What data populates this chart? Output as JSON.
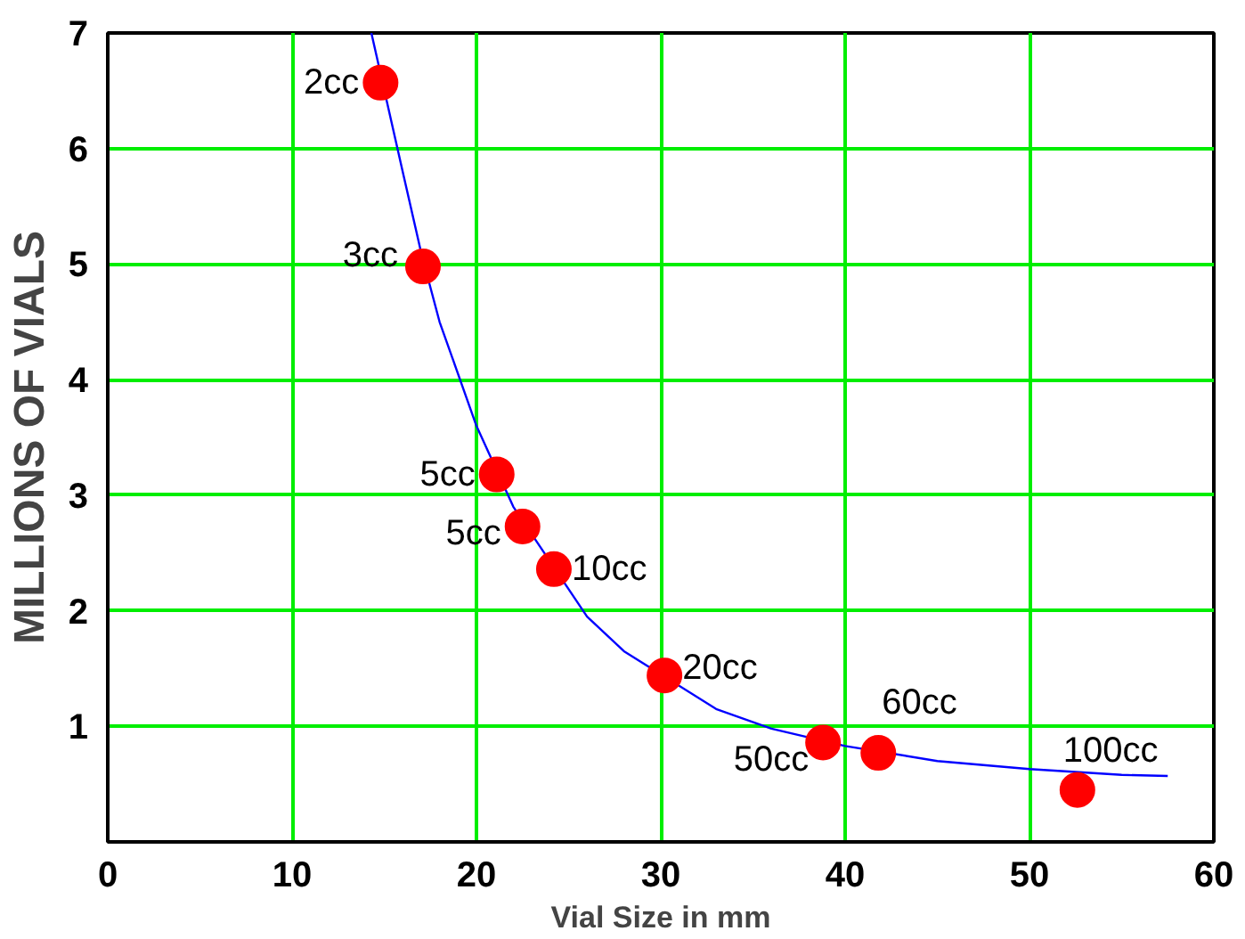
{
  "chart_data": {
    "type": "scatter",
    "xlabel": "Vial Size in mm",
    "ylabel": "MILLIONS OF VIALS",
    "x": [
      14.8,
      17.1,
      21.1,
      22.5,
      24.2,
      30.2,
      38.8,
      41.8,
      52.6
    ],
    "series": [
      {
        "color": "#ff0000",
        "values": [
          6.57,
          4.98,
          3.18,
          2.73,
          2.36,
          1.44,
          0.86,
          0.77,
          0.45
        ]
      },
      {
        "type": "line",
        "marker": "none",
        "color": "#0000ff",
        "x": [
          14.3,
          16,
          17,
          18,
          20,
          22,
          26,
          28,
          33,
          36,
          40,
          45,
          50,
          55,
          57.5
        ],
        "values": [
          7,
          5.8,
          5.1,
          4.5,
          3.6,
          2.9,
          1.95,
          1.65,
          1.15,
          0.98,
          0.83,
          0.7,
          0.63,
          0.58,
          0.57
        ]
      }
    ],
    "annotations": [
      {
        "text": "2cc",
        "x": 14.8,
        "y": 6.57
      },
      {
        "text": "3cc",
        "x": 17.1,
        "y": 4.98
      },
      {
        "text": "5cc",
        "x": 21.1,
        "y": 3.18
      },
      {
        "text": "5cc",
        "x": 22.5,
        "y": 2.73
      },
      {
        "text": "10cc",
        "x": 24.2,
        "y": 2.36
      },
      {
        "text": "20cc",
        "x": 30.2,
        "y": 1.44
      },
      {
        "text": "50cc",
        "x": 38.8,
        "y": 0.86
      },
      {
        "text": "60cc",
        "x": 41.8,
        "y": 0.77
      },
      {
        "text": "100cc",
        "x": 52.6,
        "y": 0.45
      }
    ],
    "xlim": [
      0,
      60
    ],
    "ylim": [
      0,
      7
    ],
    "xticks": [
      0,
      10,
      20,
      30,
      40,
      50,
      60
    ],
    "yticks": [
      1,
      2,
      3,
      4,
      5,
      6,
      7
    ],
    "grid": true,
    "marker": "circle",
    "line_style": "solid"
  }
}
